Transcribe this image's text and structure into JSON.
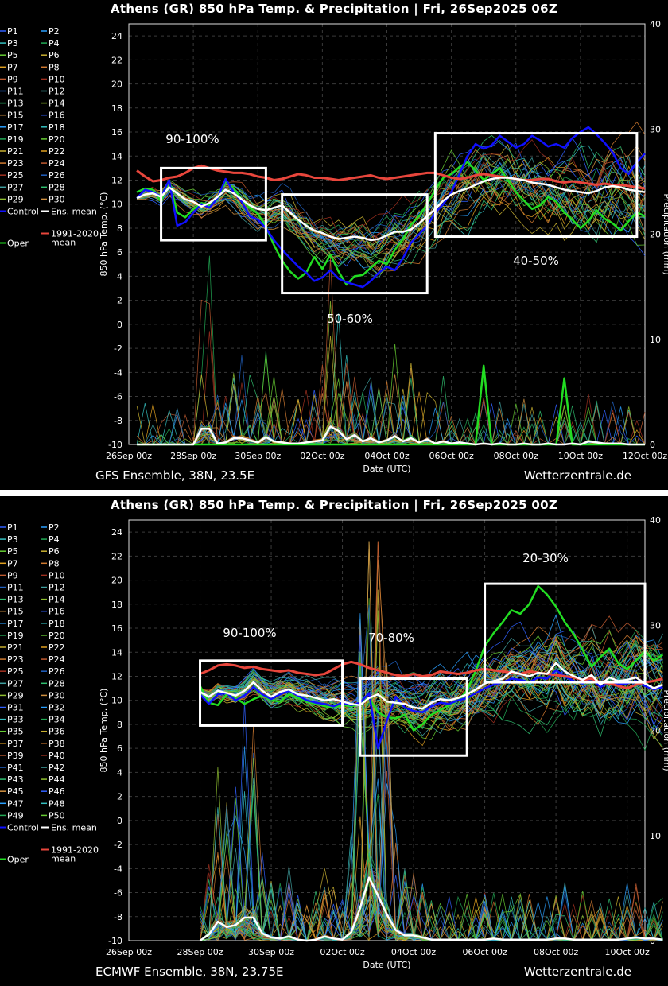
{
  "site": "Wetterzentrale.de",
  "legend_common": {
    "control": "Control",
    "ens_mean": "Ens. mean",
    "oper": "Oper",
    "clim_line1": "1991-2020",
    "clim_line2": "mean"
  },
  "colors": {
    "background": "#000000",
    "grid": "#3a3a3a",
    "ens_mean": "#ffffff",
    "climatology": "#e8463c",
    "control": "#1010ff",
    "oper": "#22dd22",
    "box": "#ffffff"
  },
  "charts": [
    {
      "title": "Athens  (GR)  850 hPa Temp. & Precipitation | Fri, 26Sep2025 06Z",
      "footer_left": "GFS Ensemble, 38N, 23.5E",
      "members": [
        "P1",
        "P2",
        "P3",
        "P4",
        "P5",
        "P6",
        "P7",
        "P8",
        "P9",
        "P10",
        "P11",
        "P12",
        "P13",
        "P14",
        "P15",
        "P16",
        "P17",
        "P18",
        "P19",
        "P20",
        "P21",
        "P22",
        "P23",
        "P24",
        "P25",
        "P26",
        "P27",
        "P28",
        "P29",
        "P30"
      ],
      "annotations": [
        "90-100%",
        "50-60%",
        "40-50%"
      ],
      "chart_data": {
        "type": "line",
        "xlabel": "Date (UTC)",
        "ylabel": "850 hPa Temp. (°C)",
        "y2label": "Precipitation (mm)",
        "ylim": [
          -10,
          25
        ],
        "y2lim": [
          0,
          40
        ],
        "yticks": [
          -10,
          -8,
          -6,
          -4,
          -2,
          0,
          2,
          4,
          6,
          8,
          10,
          12,
          14,
          16,
          18,
          20,
          22,
          24
        ],
        "y2ticks": [
          0,
          10,
          20,
          30,
          40
        ],
        "xlim_days": [
          0,
          16
        ],
        "xticks": [
          "26Sep 00z",
          "28Sep 00z",
          "30Sep 00z",
          "02Oct 00z",
          "04Oct 00z",
          "06Oct 00z",
          "08Oct 00z",
          "10Oct 00z",
          "12Oct 00z"
        ],
        "grid": true,
        "boxes": [
          {
            "label": "90-100%",
            "x": [
              "27Sep 00z",
              "30Sep 06z"
            ],
            "y": [
              7,
              13
            ]
          },
          {
            "label": "50-60%",
            "x": [
              "30Sep 18z",
              "05Oct 06z"
            ],
            "y": [
              2.6,
              10.8
            ]
          },
          {
            "label": "40-50%",
            "x": [
              "05Oct 12z",
              "11Oct 18z"
            ],
            "y": [
              7.3,
              15.9
            ]
          }
        ],
        "series": [
          {
            "name": "Ens. mean",
            "x_start": "26Sep 06z",
            "step_hours": 6,
            "values": [
              10.5,
              10.8,
              10.9,
              10.6,
              11.4,
              10.9,
              10.4,
              10.2,
              9.8,
              10.1,
              10.6,
              11.2,
              10.9,
              10.4,
              9.9,
              9.6,
              9.5,
              9.7,
              9.9,
              9.3,
              8.7,
              8.2,
              7.8,
              7.6,
              7.3,
              7.1,
              7.2,
              7.3,
              7.2,
              7.0,
              7.1,
              7.4,
              7.7,
              7.7,
              7.9,
              8.4,
              9.0,
              9.6,
              10.3,
              10.8,
              11.1,
              11.3,
              11.6,
              11.9,
              12.1,
              12.2,
              12.2,
              12.1,
              12.0,
              11.8,
              11.7,
              11.6,
              11.4,
              11.2,
              11.1,
              11.0,
              10.9,
              11.1,
              11.4,
              11.5,
              11.4,
              11.2,
              11.1,
              11.0
            ]
          },
          {
            "name": "1991-2020 mean",
            "x_start": "26Sep 06z",
            "step_hours": 6,
            "values": [
              12.8,
              12.3,
              11.9,
              12.0,
              12.2,
              12.3,
              12.6,
              13.0,
              13.2,
              13.0,
              12.8,
              12.7,
              12.6,
              12.6,
              12.5,
              12.3,
              12.2,
              12.0,
              12.1,
              12.3,
              12.5,
              12.4,
              12.2,
              12.2,
              12.1,
              12.0,
              12.1,
              12.2,
              12.3,
              12.4,
              12.2,
              12.1,
              12.2,
              12.3,
              12.4,
              12.5,
              12.6,
              12.6,
              12.4,
              12.2,
              12.1,
              12.2,
              12.4,
              12.5,
              12.4,
              12.3,
              12.2,
              12.1,
              12.0,
              12.0,
              12.1,
              12.1,
              11.9,
              11.8,
              11.9,
              11.8,
              11.7,
              11.6,
              11.7,
              11.6,
              11.6,
              11.5,
              11.4,
              11.3
            ]
          },
          {
            "name": "Control",
            "x_start": "26Sep 06z",
            "step_hours": 6,
            "values": [
              10.5,
              11.2,
              11.0,
              10.6,
              12.0,
              8.2,
              8.5,
              9.3,
              10.0,
              9.7,
              10.5,
              12.1,
              11.0,
              10.2,
              9.0,
              8.7,
              8.0,
              7.0,
              6.2,
              5.5,
              4.8,
              4.3,
              3.6,
              3.9,
              4.5,
              3.8,
              3.5,
              3.3,
              3.1,
              3.6,
              4.3,
              4.8,
              4.5,
              5.5,
              6.8,
              7.5,
              8.2,
              9.3,
              10.0,
              11.0,
              12.5,
              14.0,
              15.0,
              14.6,
              14.9,
              15.7,
              15.2,
              14.7,
              15.0,
              15.7,
              15.3,
              14.8,
              15.0,
              14.7,
              15.5,
              16.0,
              16.4,
              15.8,
              15.1,
              14.3,
              13.0,
              12.5,
              13.5,
              14.2
            ]
          },
          {
            "name": "Oper",
            "x_start": "26Sep 06z",
            "step_hours": 6,
            "values": [
              11.0,
              11.3,
              11.2,
              10.2,
              12.0,
              9.3,
              8.9,
              9.6,
              10.1,
              9.9,
              10.4,
              11.9,
              11.3,
              10.4,
              9.7,
              9.2,
              8.1,
              6.6,
              5.3,
              4.4,
              3.8,
              4.3,
              5.6,
              4.6,
              5.8,
              4.4,
              3.3,
              4.0,
              4.1,
              4.7,
              5.3,
              5.0,
              6.2,
              7.1,
              8.3,
              9.0,
              10.0,
              11.2,
              12.2,
              12.5,
              13.1,
              13.5,
              12.8,
              12.0,
              12.5,
              13.0,
              12.0,
              11.0,
              10.3,
              9.6,
              9.9,
              10.6,
              10.2,
              9.3,
              8.7,
              8.0,
              8.6,
              9.5,
              8.8,
              8.4,
              7.8,
              8.6,
              9.3,
              9.0
            ]
          },
          {
            "name": "Ens. mean (precip.)",
            "x_start": "26Sep 06z",
            "step_hours": 6,
            "values": [
              0,
              0,
              0,
              0,
              0,
              0,
              0,
              0,
              1.5,
              1.5,
              0.1,
              0.2,
              0.6,
              0.6,
              0.4,
              0.2,
              0.7,
              0.3,
              0.2,
              0.1,
              0.1,
              0.2,
              0.3,
              0.4,
              1.7,
              1.3,
              0.5,
              0.9,
              0.3,
              0.6,
              0.2,
              0.4,
              0.8,
              0.3,
              0.6,
              0.2,
              0.5,
              0.1,
              0.3,
              0.1,
              0.2,
              0.1,
              0,
              0.1,
              0,
              0.1,
              0,
              0,
              0.1,
              0,
              0,
              0.1,
              0,
              0,
              0.1,
              0,
              0.3,
              0.2,
              0.1,
              0.1,
              0.1,
              0,
              0,
              0
            ]
          },
          {
            "name": "Oper (precip.)",
            "x_start": "26Sep 06z",
            "step_hours": 6,
            "values": [
              0,
              0,
              0,
              0,
              0,
              0,
              0,
              0,
              0,
              0,
              0,
              0,
              0,
              0,
              0,
              0,
              0,
              0,
              0,
              0,
              0,
              0,
              0,
              0,
              0,
              0,
              0,
              0,
              0,
              0,
              0,
              0,
              0,
              0,
              0,
              0,
              0,
              0,
              0,
              0,
              0,
              0,
              0,
              7.5,
              0,
              0,
              0,
              0,
              0,
              0,
              0,
              0,
              0,
              6.3,
              0,
              0,
              0,
              0,
              0,
              0,
              0,
              0,
              0,
              0
            ]
          }
        ]
      }
    },
    {
      "title": "Athens  (GR)  850 hPa Temp. & Precipitation | Fri, 26Sep2025 00Z",
      "footer_left": "ECMWF Ensemble, 38N, 23.75E",
      "members": [
        "P1",
        "P2",
        "P3",
        "P4",
        "P5",
        "P6",
        "P7",
        "P8",
        "P9",
        "P10",
        "P11",
        "P12",
        "P13",
        "P14",
        "P15",
        "P16",
        "P17",
        "P18",
        "P19",
        "P20",
        "P21",
        "P22",
        "P23",
        "P24",
        "P25",
        "P26",
        "P27",
        "P28",
        "P29",
        "P30",
        "P31",
        "P32",
        "P33",
        "P34",
        "P35",
        "P36",
        "P37",
        "P38",
        "P39",
        "P40",
        "P41",
        "P42",
        "P43",
        "P44",
        "P45",
        "P46",
        "P47",
        "P48",
        "P49",
        "P50"
      ],
      "annotations": [
        "90-100%",
        "70-80%",
        "20-30%"
      ],
      "chart_data": {
        "type": "line",
        "xlabel": "Date (UTC)",
        "ylabel": "850 hPa Temp. (°C)",
        "y2label": "Precipitation (mm)",
        "ylim": [
          -10,
          25
        ],
        "y2lim": [
          0,
          40
        ],
        "yticks": [
          -10,
          -8,
          -6,
          -4,
          -2,
          0,
          2,
          4,
          6,
          8,
          10,
          12,
          14,
          16,
          18,
          20,
          22,
          24
        ],
        "y2ticks": [
          0,
          10,
          20,
          30,
          40
        ],
        "xlim_days": [
          0,
          14.5
        ],
        "xticks": [
          "26Sep 00z",
          "28Sep 00z",
          "30Sep 00z",
          "02Oct 00z",
          "04Oct 00z",
          "06Oct 00z",
          "08Oct 00z",
          "10Oct 00z"
        ],
        "grid": true,
        "boxes": [
          {
            "label": "90-100%",
            "x": [
              "28Sep 00z",
              "02Oct 00z"
            ],
            "y": [
              7.9,
              13.3
            ]
          },
          {
            "label": "70-80%",
            "x": [
              "02Oct 12z",
              "05Oct 12z"
            ],
            "y": [
              5.4,
              11.8
            ]
          },
          {
            "label": "20-30%",
            "x": [
              "06Oct 00z",
              "10Oct 12z"
            ],
            "y": [
              11.5,
              19.7
            ]
          }
        ],
        "series": [
          {
            "name": "Ens. mean",
            "x_start": "28Sep 00z",
            "step_hours": 6,
            "values": [
              10.7,
              10.3,
              10.8,
              10.6,
              10.4,
              10.8,
              11.5,
              10.8,
              10.3,
              10.7,
              10.9,
              10.5,
              10.4,
              10.2,
              10.0,
              10.1,
              9.9,
              9.7,
              9.6,
              10.2,
              10.5,
              9.9,
              9.8,
              9.7,
              9.4,
              9.3,
              9.8,
              10.1,
              10.0,
              10.2,
              10.5,
              10.9,
              11.4,
              11.6,
              11.8,
              12.4,
              12.2,
              12.0,
              12.3,
              12.2,
              13.1,
              12.4,
              12.0,
              11.7,
              12.1,
              11.3,
              11.9,
              11.6,
              11.7,
              11.9,
              11.4,
              11.0,
              11.3
            ]
          },
          {
            "name": "1991-2020 mean",
            "x_start": "28Sep 00z",
            "step_hours": 6,
            "values": [
              12.2,
              12.5,
              12.9,
              13.0,
              12.9,
              12.7,
              12.8,
              12.6,
              12.5,
              12.4,
              12.5,
              12.3,
              12.2,
              12.1,
              12.2,
              12.6,
              13.0,
              13.2,
              13.0,
              12.7,
              12.5,
              12.3,
              12.1,
              12.0,
              12.2,
              12.0,
              12.1,
              12.4,
              12.3,
              12.2,
              12.3,
              12.5,
              12.6,
              12.5,
              12.4,
              12.3,
              12.2,
              12.4,
              12.3,
              12.2,
              12.1,
              12.0,
              11.9,
              11.7,
              11.8,
              11.5,
              11.4,
              11.2,
              11.0,
              11.3,
              11.5,
              11.6,
              11.8
            ]
          },
          {
            "name": "Control",
            "x_start": "28Sep 00z",
            "step_hours": 6,
            "values": [
              10.5,
              9.7,
              10.5,
              10.6,
              10.0,
              10.4,
              11.1,
              10.5,
              10.1,
              10.5,
              10.8,
              10.4,
              10.0,
              9.8,
              9.7,
              9.5,
              9.8,
              9.6,
              9.8,
              10.6,
              6.0,
              8.3,
              10.3,
              9.4,
              9.1,
              9.0,
              9.5,
              9.8,
              9.7,
              10.0,
              10.2,
              10.6,
              11.0,
              11.3,
              11.5,
              11.8,
              11.7,
              11.5,
              11.9,
              11.8,
              12.5,
              12.0,
              11.6,
              11.4,
              11.8,
              11.1,
              11.5,
              11.3,
              11.4,
              11.6,
              11.2,
              10.9,
              11.1
            ]
          },
          {
            "name": "Oper",
            "x_start": "28Sep 00z",
            "step_hours": 6,
            "values": [
              11.2,
              9.8,
              9.6,
              10.5,
              10.2,
              9.7,
              10.1,
              10.4,
              10.0,
              9.9,
              10.5,
              10.2,
              9.9,
              9.7,
              9.5,
              9.4,
              9.6,
              9.5,
              9.7,
              10.2,
              9.0,
              8.6,
              8.5,
              8.8,
              7.5,
              8.0,
              8.8,
              9.2,
              9.6,
              10.0,
              10.8,
              12.5,
              14.5,
              15.6,
              16.5,
              17.5,
              17.2,
              18.0,
              19.5,
              18.8,
              17.8,
              16.5,
              15.5,
              14.2,
              12.8,
              13.6,
              14.3,
              13.1,
              12.6,
              13.3,
              14.1,
              13.3,
              13.8
            ]
          },
          {
            "name": "Ens. mean (precip.)",
            "x_start": "28Sep 00z",
            "step_hours": 6,
            "values": [
              0,
              0.6,
              1.8,
              1.3,
              1.5,
              2.2,
              2.2,
              0.7,
              0.3,
              0.2,
              0.4,
              0.1,
              0,
              0.1,
              0.4,
              0.2,
              0.1,
              0.8,
              3.1,
              6.0,
              4.3,
              2.5,
              1.0,
              0.5,
              0.5,
              0.3,
              0.1,
              0.1,
              0.1,
              0.1,
              0.1,
              0.1,
              0.1,
              0.2,
              0.1,
              0.1,
              0.1,
              0.1,
              0.1,
              0.1,
              0.2,
              0.2,
              0.1,
              0.1,
              0.1,
              0.1,
              0.1,
              0.1,
              0.2,
              0.3,
              0.2,
              0.2,
              0.1
            ]
          }
        ]
      }
    }
  ]
}
